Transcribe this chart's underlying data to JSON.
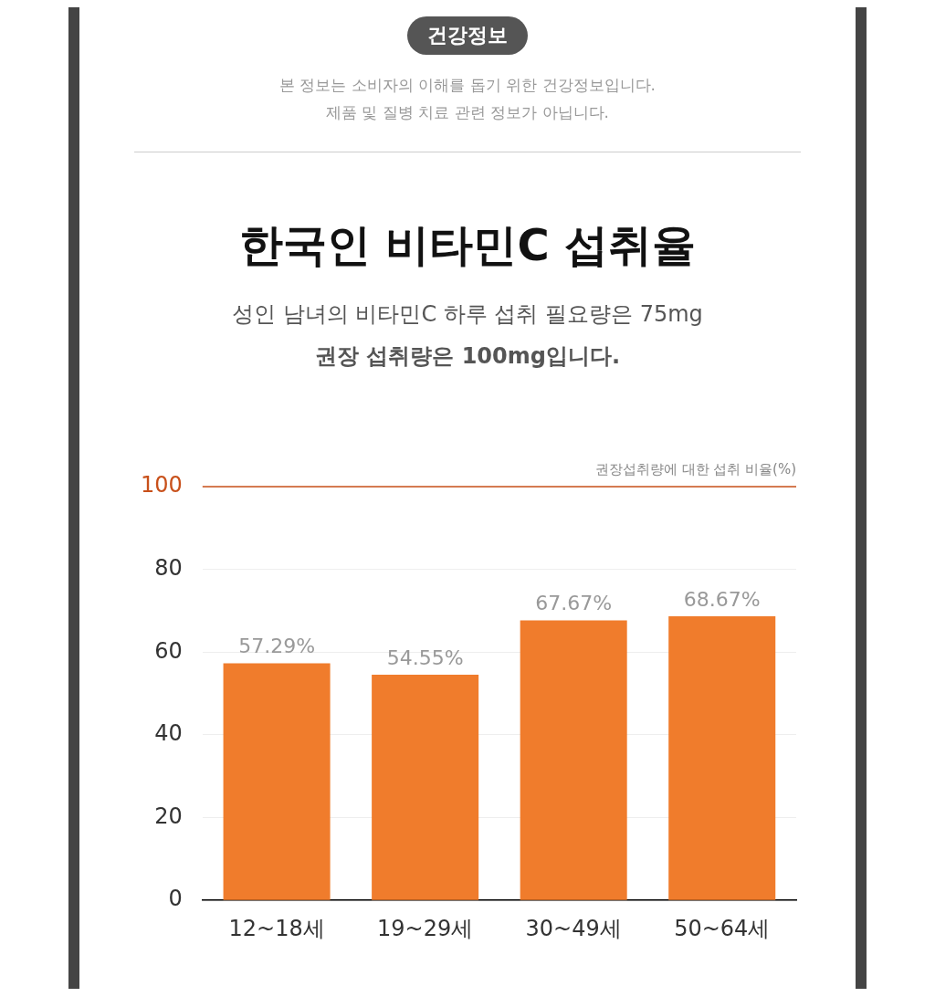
{
  "chart_data": {
    "type": "bar",
    "title": "한국인 비타민C 섭취율",
    "subtitle": "성인 남녀의 비타민C 하루 섭취 필요량은 75mg\n권장 섭취량은 100mg입니다.",
    "annotations": [
      "건강정보",
      "본 정보는 소비자의 이해를 돕기 위한 건강정보입니다.",
      "제품 및 질병 치료 관련 정보가 아닙니다."
    ],
    "ylabel": "권장섭취량에 대한 섭취 비율(%)",
    "categories": [
      "12~18세",
      "19~29세",
      "30~49세",
      "50~64세"
    ],
    "values": [
      57.29,
      54.55,
      67.67,
      68.67
    ],
    "value_labels": [
      "57.29%",
      "54.55%",
      "67.67%",
      "68.67%"
    ],
    "color": "#f07c2c",
    "ylim": [
      0,
      100
    ],
    "yticks": [
      0,
      20,
      40,
      60,
      80,
      100
    ],
    "grid": "y",
    "legend": false,
    "ref_lines": [
      {
        "axis": "y",
        "value": 100,
        "color": "#c8501a"
      }
    ]
  }
}
